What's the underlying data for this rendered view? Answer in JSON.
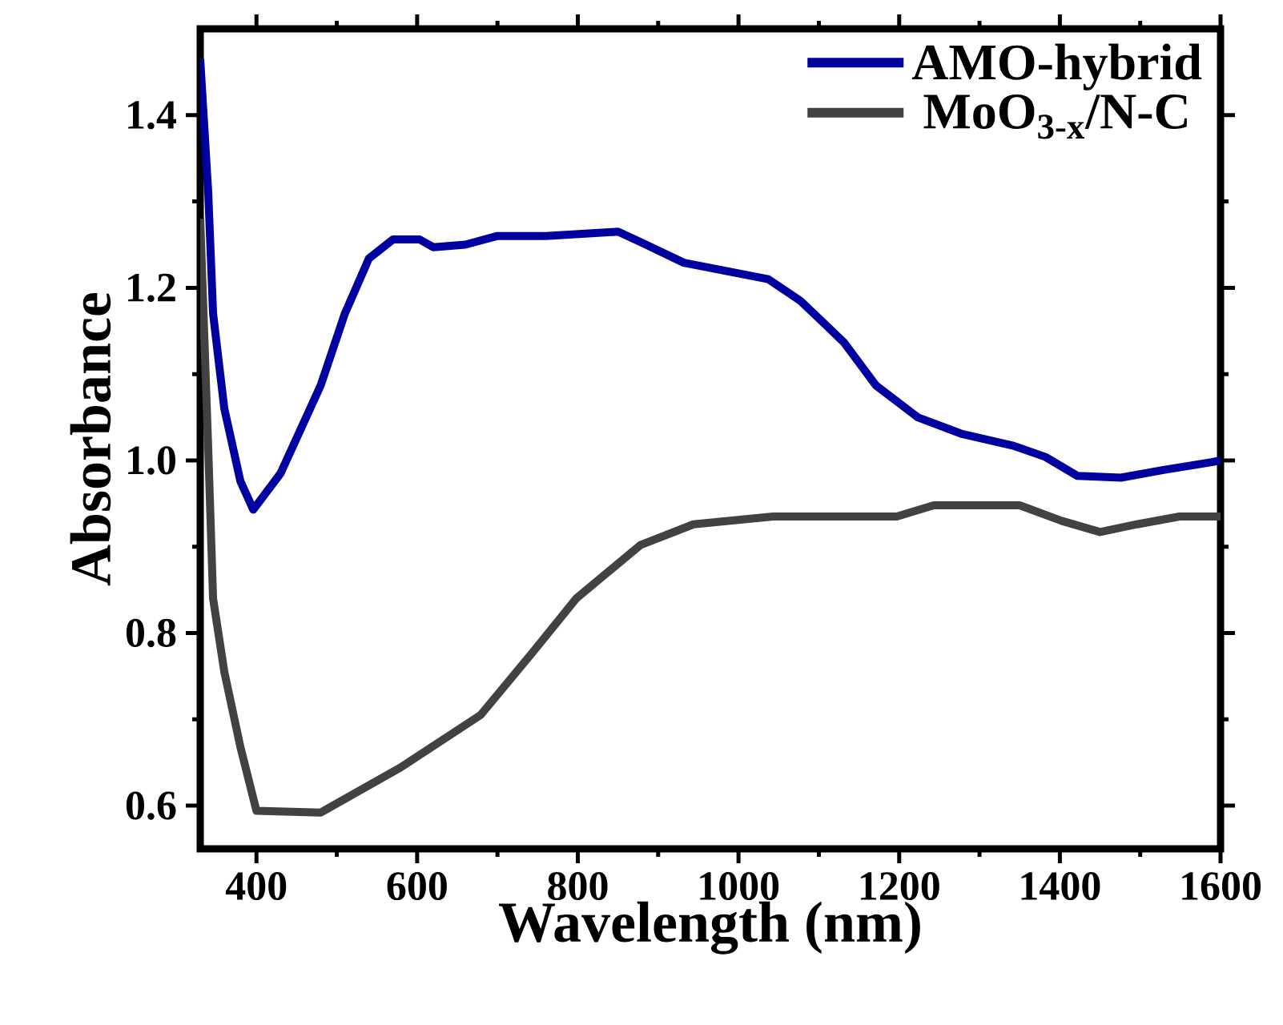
{
  "chart_data": {
    "type": "line",
    "xlabel": "Wavelength (nm)",
    "ylabel": "Absorbance",
    "xlim": [
      330,
      1600
    ],
    "ylim": [
      0.55,
      1.5
    ],
    "xticks": [
      400,
      600,
      800,
      1000,
      1200,
      1400,
      1600
    ],
    "yticks": [
      0.6,
      0.8,
      {
        "value": 1.0,
        "label": "1.0"
      },
      1.2,
      1.4
    ],
    "legend": "top right",
    "grid": false,
    "marker": "none",
    "line_style": "solid",
    "series": [
      {
        "name": "AMO-hybrid",
        "color": "#0000a0",
        "x": [
          330,
          340,
          346,
          360,
          380,
          396,
          430,
          480,
          510,
          540,
          570,
          603,
          620,
          660,
          700,
          760,
          850,
          878,
          932,
          1037,
          1077,
          1131,
          1171,
          1223,
          1277,
          1342,
          1382,
          1422,
          1476,
          1529,
          1589,
          1600
        ],
        "values": [
          1.465,
          1.31,
          1.17,
          1.06,
          0.976,
          0.943,
          0.985,
          1.087,
          1.17,
          1.234,
          1.256,
          1.256,
          1.247,
          1.25,
          1.26,
          1.26,
          1.265,
          1.253,
          1.229,
          1.21,
          1.185,
          1.137,
          1.087,
          1.05,
          1.031,
          1.017,
          1.004,
          0.982,
          0.98,
          0.989,
          0.998,
          1.0
        ]
      },
      {
        "name": "MoO$_{3-x}$/N-C",
        "color": "#424242",
        "x": [
          330,
          340,
          346,
          360,
          380,
          400,
          480,
          579,
          679,
          745,
          798,
          878,
          944,
          1043,
          1197,
          1243,
          1350,
          1402,
          1450,
          1496,
          1549,
          1600
        ],
        "values": [
          1.28,
          1.013,
          0.84,
          0.755,
          0.668,
          0.594,
          0.592,
          0.644,
          0.705,
          0.779,
          0.84,
          0.902,
          0.926,
          0.935,
          0.935,
          0.948,
          0.948,
          0.93,
          0.917,
          0.926,
          0.935,
          0.935
        ]
      }
    ]
  }
}
